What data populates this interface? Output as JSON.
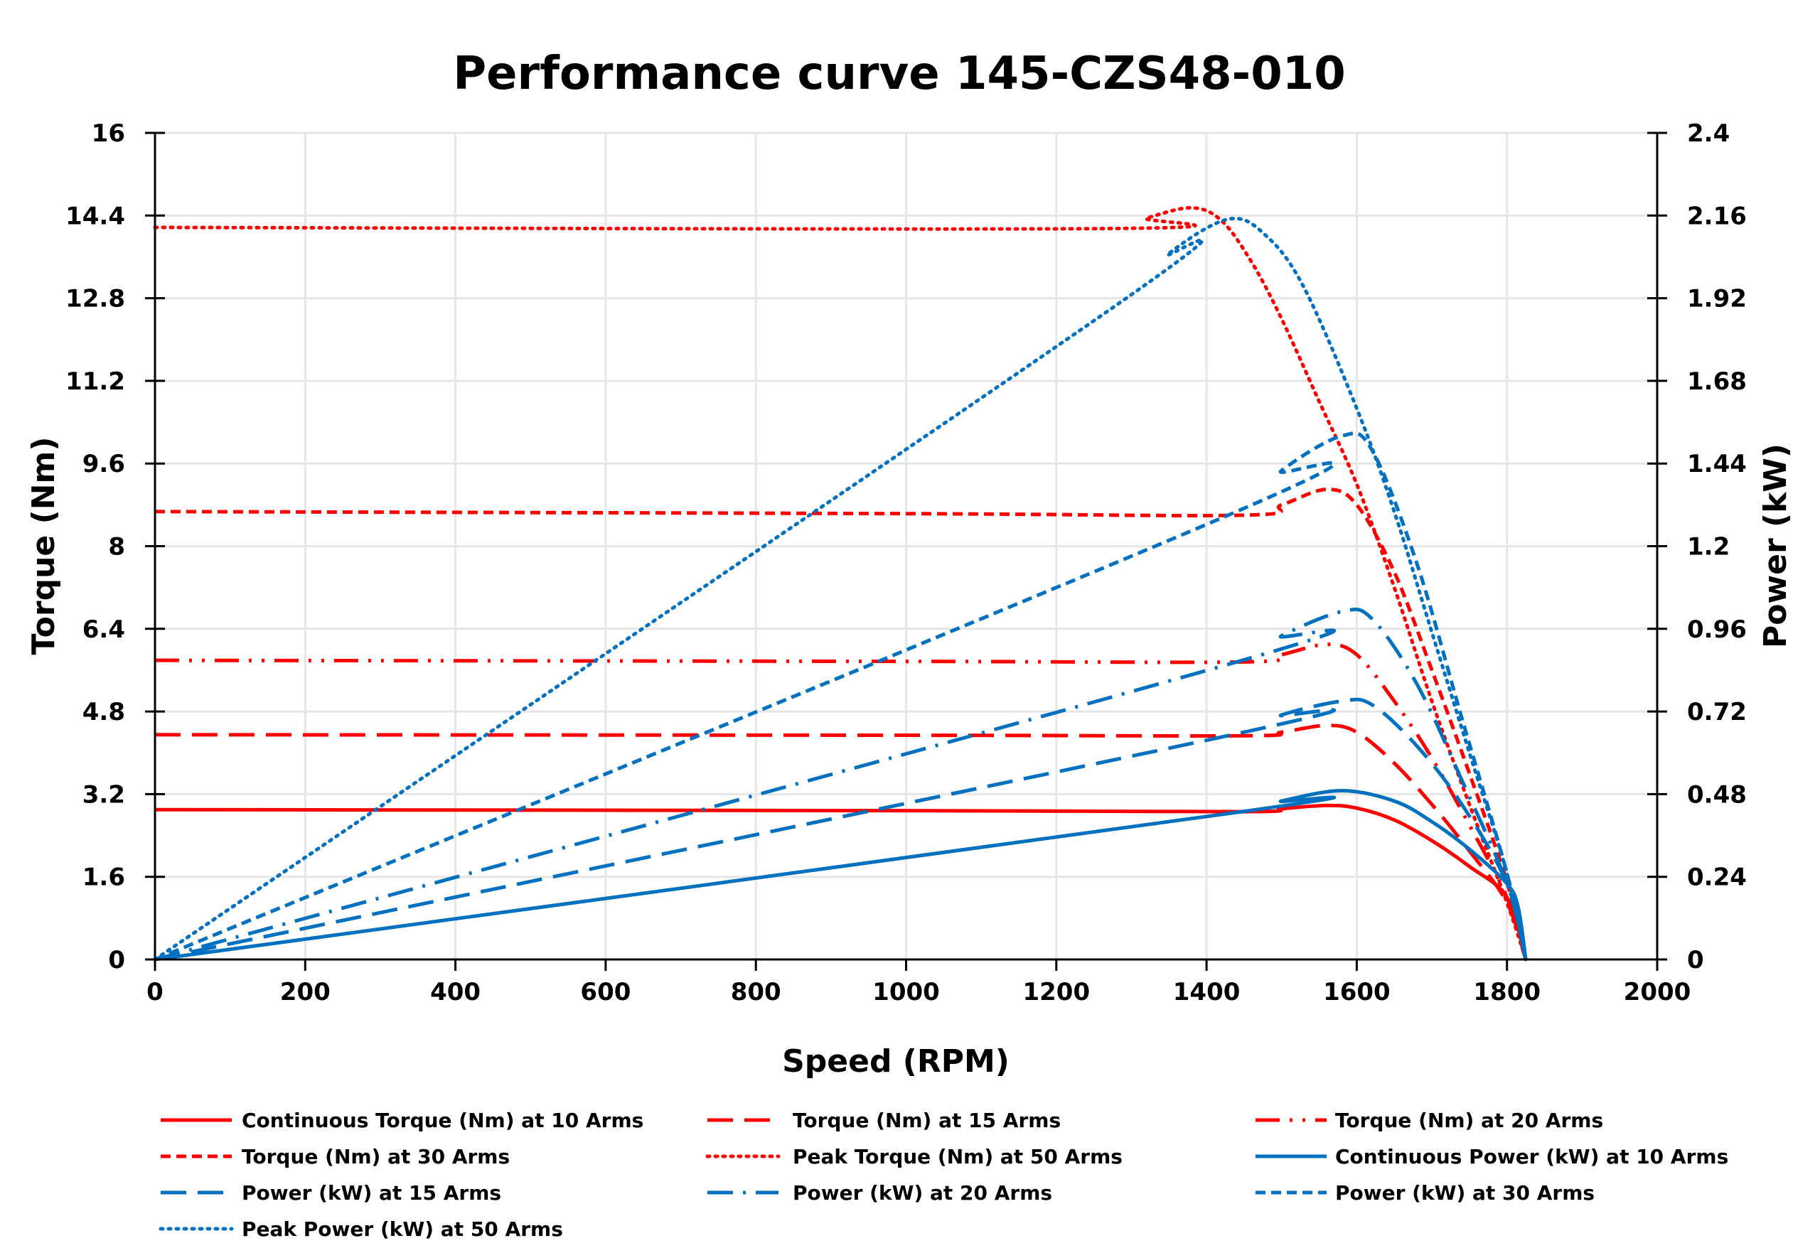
{
  "chart_data": {
    "type": "line",
    "title": "Performance curve 145-CZS48-010",
    "xlabel": "Speed (RPM)",
    "ylabel": "Torque (Nm)",
    "y2label": "Power (kW)",
    "xlim": [
      0,
      2000
    ],
    "ylim": [
      0,
      16
    ],
    "y2lim": [
      0,
      2.4
    ],
    "x_ticks": [
      "0",
      "200",
      "400",
      "600",
      "800",
      "1000",
      "1200",
      "1400",
      "1600",
      "1800",
      "2000"
    ],
    "y_ticks": [
      "0",
      "1.6",
      "3.2",
      "4.8",
      "6.4",
      "8",
      "9.6",
      "11.2",
      "12.8",
      "14.4",
      "16"
    ],
    "y2_ticks": [
      "0",
      "0.24",
      "0.48",
      "0.72",
      "0.96",
      "1.2",
      "1.44",
      "1.68",
      "1.92",
      "2.16",
      "2.4"
    ],
    "grid": true,
    "legend_position": "bottom",
    "colors": {
      "torque": "#FF0000",
      "power": "#0070C0"
    },
    "series": [
      {
        "name": "Continuous Torque (Nm) at 10 Arms",
        "axis": "left",
        "color": "#FF0000",
        "style": "solid",
        "points": [
          [
            0,
            2.9
          ],
          [
            1000,
            2.88
          ],
          [
            1450,
            2.86
          ],
          [
            1500,
            2.92
          ],
          [
            1560,
            2.98
          ],
          [
            1600,
            2.93
          ],
          [
            1650,
            2.7
          ],
          [
            1700,
            2.3
          ],
          [
            1750,
            1.8
          ],
          [
            1800,
            1.2
          ],
          [
            1825,
            0
          ]
        ]
      },
      {
        "name": "Torque (Nm) at 15 Arms",
        "axis": "left",
        "color": "#FF0000",
        "style": "long-dash",
        "points": [
          [
            0,
            4.35
          ],
          [
            1000,
            4.34
          ],
          [
            1450,
            4.33
          ],
          [
            1500,
            4.4
          ],
          [
            1560,
            4.53
          ],
          [
            1600,
            4.4
          ],
          [
            1650,
            3.8
          ],
          [
            1700,
            3.0
          ],
          [
            1750,
            2.1
          ],
          [
            1800,
            1.1
          ],
          [
            1825,
            0
          ]
        ]
      },
      {
        "name": "Torque (Nm) at 20 Arms",
        "axis": "left",
        "color": "#FF0000",
        "style": "long-dash-dot-dot",
        "points": [
          [
            0,
            5.79
          ],
          [
            1000,
            5.77
          ],
          [
            1450,
            5.76
          ],
          [
            1500,
            5.9
          ],
          [
            1560,
            6.1
          ],
          [
            1600,
            5.9
          ],
          [
            1650,
            5.0
          ],
          [
            1700,
            3.9
          ],
          [
            1750,
            2.6
          ],
          [
            1800,
            1.2
          ],
          [
            1825,
            0
          ]
        ]
      },
      {
        "name": "Torque (Nm) at 30 Arms",
        "axis": "left",
        "color": "#FF0000",
        "style": "dash",
        "points": [
          [
            0,
            8.67
          ],
          [
            1000,
            8.63
          ],
          [
            1450,
            8.6
          ],
          [
            1500,
            8.8
          ],
          [
            1560,
            9.1
          ],
          [
            1600,
            8.8
          ],
          [
            1650,
            7.5
          ],
          [
            1700,
            5.6
          ],
          [
            1750,
            3.6
          ],
          [
            1800,
            1.5
          ],
          [
            1825,
            0
          ]
        ]
      },
      {
        "name": "Peak Torque (Nm) at 50 Arms",
        "axis": "left",
        "color": "#FF0000",
        "style": "dot",
        "points": [
          [
            0,
            14.17
          ],
          [
            1280,
            14.15
          ],
          [
            1320,
            14.35
          ],
          [
            1380,
            14.55
          ],
          [
            1420,
            14.3
          ],
          [
            1460,
            13.5
          ],
          [
            1500,
            12.4
          ],
          [
            1550,
            10.8
          ],
          [
            1600,
            9.2
          ],
          [
            1650,
            7.2
          ],
          [
            1700,
            5.0
          ],
          [
            1750,
            3.0
          ],
          [
            1800,
            1.1
          ],
          [
            1825,
            0
          ]
        ]
      },
      {
        "name": "Continuous Power (kW) at 10 Arms",
        "axis": "right",
        "color": "#0070C0",
        "style": "solid",
        "points": [
          [
            0,
            0
          ],
          [
            1450,
            0.43
          ],
          [
            1500,
            0.46
          ],
          [
            1580,
            0.49
          ],
          [
            1650,
            0.46
          ],
          [
            1700,
            0.4
          ],
          [
            1750,
            0.32
          ],
          [
            1800,
            0.22
          ],
          [
            1815,
            0.15
          ],
          [
            1825,
            0
          ]
        ]
      },
      {
        "name": "Power (kW) at 15 Arms",
        "axis": "right",
        "color": "#0070C0",
        "style": "long-dash",
        "points": [
          [
            0,
            0
          ],
          [
            1450,
            0.66
          ],
          [
            1500,
            0.71
          ],
          [
            1580,
            0.75
          ],
          [
            1620,
            0.74
          ],
          [
            1680,
            0.62
          ],
          [
            1740,
            0.45
          ],
          [
            1800,
            0.22
          ],
          [
            1825,
            0
          ]
        ]
      },
      {
        "name": "Power (kW) at 20 Arms",
        "axis": "right",
        "color": "#0070C0",
        "style": "long-dash-dot",
        "points": [
          [
            0,
            0
          ],
          [
            1450,
            0.87
          ],
          [
            1500,
            0.94
          ],
          [
            1580,
            1.01
          ],
          [
            1620,
            0.99
          ],
          [
            1680,
            0.8
          ],
          [
            1740,
            0.52
          ],
          [
            1800,
            0.22
          ],
          [
            1825,
            0
          ]
        ]
      },
      {
        "name": "Power (kW) at 30 Arms",
        "axis": "right",
        "color": "#0070C0",
        "style": "dash",
        "points": [
          [
            0,
            0
          ],
          [
            1450,
            1.31
          ],
          [
            1500,
            1.42
          ],
          [
            1580,
            1.52
          ],
          [
            1620,
            1.48
          ],
          [
            1680,
            1.15
          ],
          [
            1740,
            0.7
          ],
          [
            1800,
            0.25
          ],
          [
            1825,
            0
          ]
        ]
      },
      {
        "name": "Peak Power (kW) at 50 Arms",
        "axis": "right",
        "color": "#0070C0",
        "style": "dot",
        "points": [
          [
            0,
            0
          ],
          [
            1280,
            1.9
          ],
          [
            1350,
            2.05
          ],
          [
            1430,
            2.15
          ],
          [
            1480,
            2.1
          ],
          [
            1530,
            1.95
          ],
          [
            1600,
            1.6
          ],
          [
            1650,
            1.3
          ],
          [
            1700,
            0.95
          ],
          [
            1750,
            0.6
          ],
          [
            1800,
            0.25
          ],
          [
            1825,
            0
          ]
        ]
      }
    ]
  }
}
